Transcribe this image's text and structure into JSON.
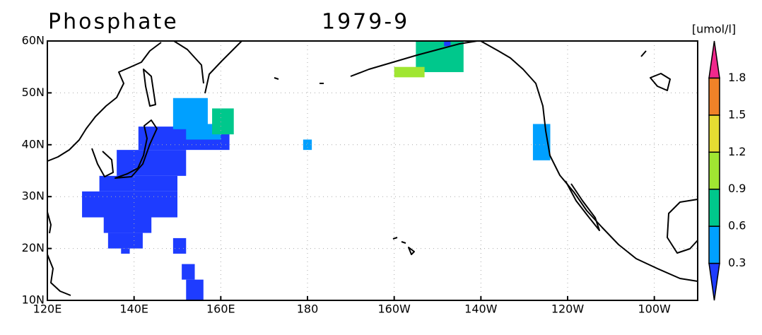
{
  "chart_data": {
    "type": "map",
    "title": "Phosphate",
    "date": "1979-9",
    "units": "[umol/l]",
    "xlim": [
      120,
      270
    ],
    "ylim": [
      10,
      60
    ],
    "xticks": [
      {
        "value": 120,
        "label": "120E"
      },
      {
        "value": 140,
        "label": "140E"
      },
      {
        "value": 160,
        "label": "160E"
      },
      180,
      {
        "value": 200,
        "label": "160W"
      },
      {
        "value": 220,
        "label": "140W"
      },
      {
        "value": 240,
        "label": "120W"
      },
      {
        "value": 260,
        "label": "100W"
      }
    ],
    "yticks": [
      {
        "value": 10,
        "label": "10N"
      },
      {
        "value": 20,
        "label": "20N"
      },
      {
        "value": 30,
        "label": "30N"
      },
      {
        "value": 40,
        "label": "40N"
      },
      {
        "value": 50,
        "label": "50N"
      },
      {
        "value": 60,
        "label": "60N"
      }
    ],
    "grid": true,
    "levels": [
      0.3,
      0.6,
      0.9,
      1.2,
      1.5,
      1.8
    ],
    "colors": [
      "#1e3cff",
      "#00a0ff",
      "#00c88c",
      "#a0e632",
      "#e6dc32",
      "#f08228",
      "#f0288c"
    ],
    "cells": [
      {
        "lon": [
          128,
          150
        ],
        "lat": [
          26,
          31
        ],
        "value": 0.2
      },
      {
        "lon": [
          132,
          150
        ],
        "lat": [
          31,
          34
        ],
        "value": 0.2
      },
      {
        "lon": [
          133,
          144
        ],
        "lat": [
          23,
          27
        ],
        "value": 0.2
      },
      {
        "lon": [
          134,
          142
        ],
        "lat": [
          20,
          23
        ],
        "value": 0.2
      },
      {
        "lon": [
          137,
          139
        ],
        "lat": [
          19,
          20
        ],
        "value": 0.2
      },
      {
        "lon": [
          136,
          152
        ],
        "lat": [
          34,
          39
        ],
        "value": 0.2
      },
      {
        "lon": [
          141,
          162
        ],
        "lat": [
          39,
          43.5
        ],
        "value": 0.2
      },
      {
        "lon": [
          149,
          152
        ],
        "lat": [
          19,
          22
        ],
        "value": 0.2
      },
      {
        "lon": [
          151,
          154
        ],
        "lat": [
          14,
          17
        ],
        "value": 0.2
      },
      {
        "lon": [
          152,
          156
        ],
        "lat": [
          10,
          14
        ],
        "value": 0.2
      },
      {
        "lon": [
          149,
          157
        ],
        "lat": [
          43,
          49
        ],
        "value": 0.45
      },
      {
        "lon": [
          152,
          160
        ],
        "lat": [
          41,
          44
        ],
        "value": 0.45
      },
      {
        "lon": [
          179,
          181
        ],
        "lat": [
          39,
          41
        ],
        "value": 0.45
      },
      {
        "lon": [
          232,
          236
        ],
        "lat": [
          37,
          44
        ],
        "value": 0.45
      },
      {
        "lon": [
          158,
          163
        ],
        "lat": [
          42,
          47
        ],
        "value": 0.75
      },
      {
        "lon": [
          205,
          216
        ],
        "lat": [
          54,
          60
        ],
        "value": 0.75
      },
      {
        "lon": [
          200,
          207
        ],
        "lat": [
          53,
          55
        ],
        "value": 1.05
      },
      {
        "lon": [
          211.5,
          213
        ],
        "lat": [
          59,
          60
        ],
        "value": 0.2
      }
    ]
  }
}
